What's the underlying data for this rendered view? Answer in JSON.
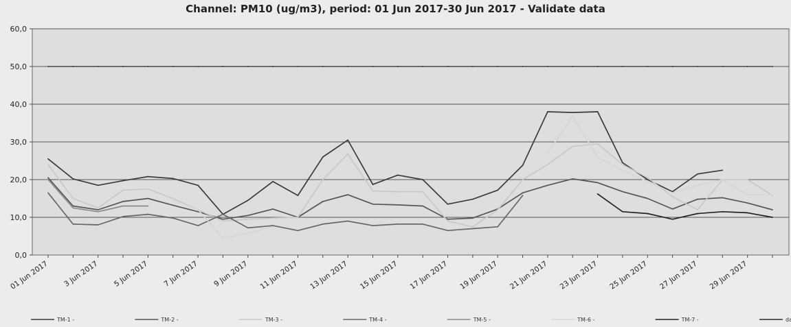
{
  "chart_data": {
    "type": "line",
    "title": "Channel: PM10 (ug/m3), period: 01 Jun 2017-30 Jun 2017 - Validate data",
    "xlabel": "",
    "ylabel": "",
    "ylim": [
      0,
      60
    ],
    "yticks": [
      "0,0",
      "10,0",
      "20,0",
      "30,0",
      "40,0",
      "50,0",
      "60,0"
    ],
    "x": [
      "01 Jun 2017",
      "02 Jun 2017",
      "03 Jun 2017",
      "04 Jun 2017",
      "05 Jun 2017",
      "06 Jun 2017",
      "07 Jun 2017",
      "08 Jun 2017",
      "09 Jun 2017",
      "10 Jun 2017",
      "11 Jun 2017",
      "12 Jun 2017",
      "13 Jun 2017",
      "14 Jun 2017",
      "15 Jun 2017",
      "16 Jun 2017",
      "17 Jun 2017",
      "18 Jun 2017",
      "19 Jun 2017",
      "20 Jun 2017",
      "21 Jun 2017",
      "22 Jun 2017",
      "23 Jun 2017",
      "24 Jun 2017",
      "25 Jun 2017",
      "26 Jun 2017",
      "27 Jun 2017",
      "28 Jun 2017",
      "29 Jun 2017",
      "30 Jun 2017"
    ],
    "xtick_labels": [
      "01 Jun 2017",
      "3 Jun 2017",
      "5 Jun 2017",
      "7 Jun 2017",
      "9 Jun 2017",
      "11 Jun 2017",
      "13 Jun 2017",
      "15 Jun 2017",
      "17 Jun 2017",
      "19 Jun 2017",
      "21 Jun 2017",
      "23 Jun 2017",
      "25 Jun 2017",
      "27 Jun 2017",
      "29 Jun 2017"
    ],
    "grid": true,
    "legend_position": "bottom",
    "series": [
      {
        "name": "TM-1 -",
        "color": "#3a3a3a",
        "values": [
          25.5,
          20.2,
          18.5,
          19.7,
          20.8,
          20.3,
          18.5,
          10.8,
          14.5,
          19.5,
          15.8,
          26.0,
          30.5,
          18.7,
          21.2,
          20.0,
          13.5,
          14.8,
          17.2,
          23.8,
          38.0,
          37.8,
          38.0,
          24.5,
          20.0,
          16.8,
          21.5,
          22.5,
          null,
          null
        ]
      },
      {
        "name": "TM-2 -",
        "color": "#555555",
        "values": [
          20.5,
          13.0,
          12.0,
          14.2,
          15.0,
          13.2,
          11.5,
          9.5,
          10.5,
          12.2,
          10.0,
          14.2,
          16.0,
          13.5,
          13.3,
          13.0,
          9.5,
          9.8,
          12.2,
          16.5,
          18.5,
          20.2,
          19.2,
          16.8,
          15.0,
          12.2,
          14.8,
          15.2,
          13.8,
          12.0
        ]
      },
      {
        "name": "TM-3 -",
        "color": "#c8c8c8",
        "values": [
          24.0,
          15.0,
          12.5,
          17.2,
          17.5,
          15.0,
          12.0,
          9.0,
          9.5,
          9.8,
          10.0,
          20.0,
          26.8,
          17.0,
          16.8,
          16.8,
          9.0,
          7.5,
          12.0,
          20.0,
          24.0,
          28.8,
          29.5,
          24.0,
          20.5,
          15.5,
          12.0,
          20.0,
          20.0,
          15.8
        ]
      },
      {
        "name": "TM-4 -",
        "color": "#666666",
        "values": [
          16.5,
          8.2,
          8.0,
          10.2,
          10.8,
          9.8,
          7.8,
          10.8,
          7.2,
          7.8,
          6.5,
          8.2,
          9.0,
          7.8,
          8.2,
          8.2,
          6.5,
          7.0,
          7.5,
          15.8,
          null,
          null,
          null,
          null,
          null,
          null,
          null,
          null,
          null,
          null
        ]
      },
      {
        "name": "TM-5 -",
        "color": "#8a8a8a",
        "values": [
          20.0,
          12.5,
          11.5,
          13.0,
          13.0,
          null,
          null,
          null,
          null,
          null,
          null,
          null,
          null,
          null,
          null,
          null,
          null,
          null,
          null,
          null,
          null,
          null,
          null,
          null,
          null,
          null,
          null,
          null,
          null,
          null
        ]
      },
      {
        "name": "TM-6 -",
        "color": "#d6d6d6",
        "values": [
          null,
          null,
          null,
          null,
          null,
          14.5,
          12.0,
          4.5,
          5.8,
          7.5,
          null,
          null,
          null,
          null,
          null,
          null,
          null,
          null,
          null,
          null,
          27.0,
          36.8,
          26.0,
          22.5,
          19.5,
          16.5,
          18.5,
          20.0,
          16.0,
          16.0
        ]
      },
      {
        "name": "TM-7 -",
        "color": "#222222",
        "values": [
          null,
          null,
          null,
          null,
          null,
          null,
          null,
          null,
          null,
          null,
          null,
          null,
          null,
          null,
          null,
          null,
          null,
          null,
          null,
          null,
          null,
          null,
          16.2,
          11.5,
          11.0,
          9.5,
          11.0,
          11.5,
          11.2,
          10.0
        ]
      },
      {
        "name": "daily limit",
        "color": "#2a2a2a",
        "values": [
          50,
          50,
          50,
          50,
          50,
          50,
          50,
          50,
          50,
          50,
          50,
          50,
          50,
          50,
          50,
          50,
          50,
          50,
          50,
          50,
          50,
          50,
          50,
          50,
          50,
          50,
          50,
          50,
          50,
          50
        ]
      }
    ]
  }
}
